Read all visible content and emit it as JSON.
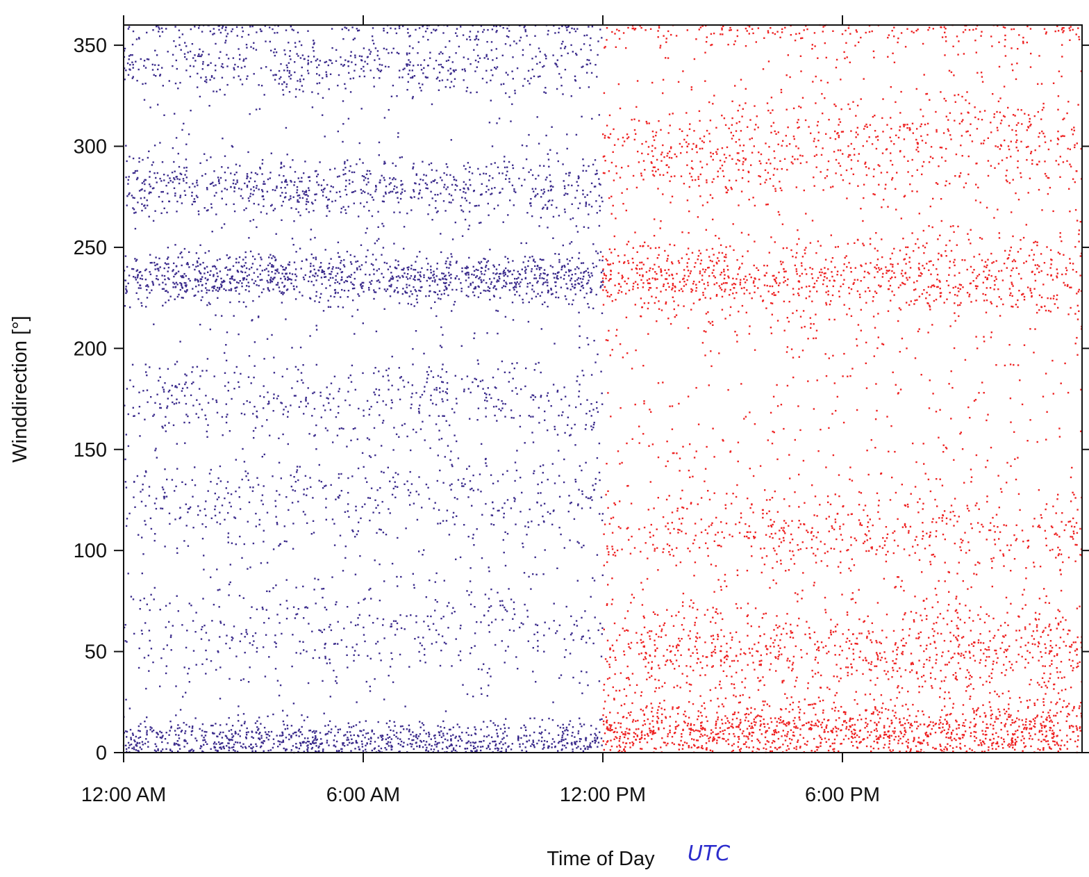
{
  "chart_data": {
    "type": "scatter",
    "title": "",
    "xlabel": "Time of Day",
    "xlabel_note": "UTC",
    "ylabel": "Winddirection [°]",
    "xlim": [
      0,
      24
    ],
    "ylim": [
      0,
      360
    ],
    "x_unit": "hour of day",
    "x_ticks": [
      {
        "value": 0,
        "label": "12:00 AM"
      },
      {
        "value": 6,
        "label": "6:00 AM"
      },
      {
        "value": 12,
        "label": "12:00 PM"
      },
      {
        "value": 18,
        "label": "6:00 PM"
      }
    ],
    "y_ticks": [
      0,
      50,
      100,
      150,
      200,
      250,
      300,
      350
    ],
    "grid": false,
    "legend": "none",
    "series": [
      {
        "color": "#3b2b8c",
        "x_range": [
          0,
          12
        ],
        "density_bands": [
          {
            "y": 5,
            "spread": 10,
            "weight": 3
          },
          {
            "y": 235,
            "spread": 12,
            "weight": 3
          },
          {
            "y": 280,
            "spread": 14,
            "weight": 2
          },
          {
            "y": 340,
            "spread": 14,
            "weight": 1.5
          },
          {
            "y": 175,
            "spread": 20,
            "weight": 1.2
          },
          {
            "y": 125,
            "spread": 25,
            "weight": 1.2
          },
          {
            "y": 60,
            "spread": 25,
            "weight": 1
          },
          {
            "y": 180,
            "spread": 110,
            "weight": 2.5
          }
        ]
      },
      {
        "color": "#ee2222",
        "x_range": [
          12,
          24
        ],
        "density_bands": [
          {
            "y": 10,
            "spread": 15,
            "weight": 3
          },
          {
            "y": 235,
            "spread": 18,
            "weight": 2
          },
          {
            "y": 50,
            "spread": 25,
            "weight": 2
          },
          {
            "y": 300,
            "spread": 25,
            "weight": 1.5
          },
          {
            "y": 110,
            "spread": 20,
            "weight": 1
          },
          {
            "y": 180,
            "spread": 110,
            "weight": 3
          }
        ]
      }
    ]
  }
}
